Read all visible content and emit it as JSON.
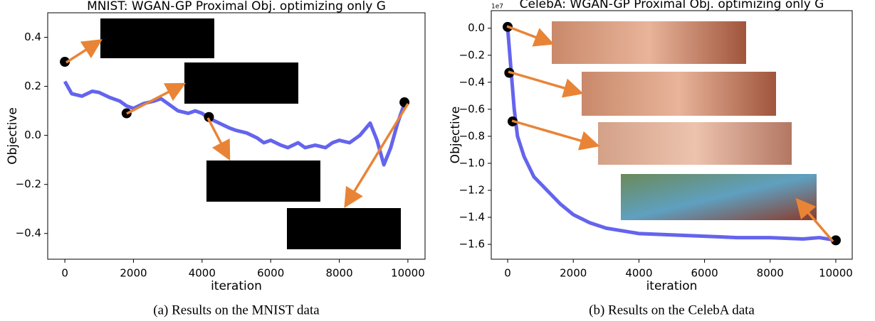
{
  "chart_data": [
    {
      "type": "line",
      "title": "MNIST: WGAN-GP Proximal Obj. optimizing only G",
      "x_label": "iteration",
      "y_label": "Objective",
      "caption": "(a) Results on the MNIST data",
      "color": "#6464ee",
      "x": [
        0,
        200,
        500,
        800,
        1000,
        1300,
        1600,
        1800,
        2000,
        2300,
        2600,
        2800,
        3000,
        3300,
        3600,
        3800,
        4000,
        4200,
        4500,
        4800,
        5000,
        5300,
        5600,
        5800,
        6000,
        6300,
        6500,
        6800,
        7000,
        7300,
        7600,
        7800,
        8000,
        8300,
        8600,
        8900,
        9100,
        9300,
        9500,
        9700,
        9900
      ],
      "values": [
        0.22,
        0.17,
        0.16,
        0.18,
        0.175,
        0.155,
        0.14,
        0.12,
        0.11,
        0.13,
        0.14,
        0.15,
        0.13,
        0.1,
        0.09,
        0.1,
        0.09,
        0.07,
        0.05,
        0.03,
        0.02,
        0.01,
        -0.01,
        -0.03,
        -0.02,
        -0.04,
        -0.05,
        -0.03,
        -0.05,
        -0.04,
        -0.05,
        -0.03,
        -0.02,
        -0.03,
        0.0,
        0.05,
        -0.02,
        -0.12,
        -0.05,
        0.05,
        0.13
      ],
      "points": {
        "x": [
          0,
          1800,
          4200,
          9900
        ],
        "values": [
          0.3,
          0.09,
          0.075,
          0.135
        ]
      },
      "xlim": [
        -500,
        10500
      ],
      "xticks": [
        0,
        2000,
        4000,
        6000,
        8000,
        10000
      ],
      "ylim": [
        -0.505,
        0.5
      ],
      "yticks": [
        {
          "value": 0.4,
          "label": "0.4"
        },
        {
          "value": 0.2,
          "label": "0.2"
        },
        {
          "value": 0,
          "label": "0.0"
        },
        {
          "value": -0.2,
          "label": "−0.2"
        },
        {
          "value": -0.4,
          "label": "−0.4"
        }
      ]
    },
    {
      "type": "line",
      "title": "CelebA: WGAN-GP Proximal Obj. optimizing only G",
      "x_label": "iteration",
      "y_label": "Objective",
      "offset_text": "1e7",
      "caption": "(b) Results on the CelebA data",
      "color": "#6464ee",
      "x": [
        0,
        100,
        200,
        300,
        500,
        800,
        1200,
        1600,
        2000,
        2500,
        3000,
        3500,
        4000,
        5000,
        6000,
        7000,
        8000,
        9000,
        9500,
        10000
      ],
      "values": [
        0.0,
        -0.3,
        -0.6,
        -0.8,
        -0.95,
        -1.1,
        -1.2,
        -1.3,
        -1.38,
        -1.44,
        -1.48,
        -1.5,
        -1.52,
        -1.53,
        -1.54,
        -1.55,
        -1.55,
        -1.56,
        -1.55,
        -1.57
      ],
      "points": {
        "x": [
          0,
          50,
          150,
          10000
        ],
        "values": [
          0.01,
          -0.33,
          -0.69,
          -1.57
        ]
      },
      "xlim": [
        -500,
        10500
      ],
      "xticks": [
        0,
        2000,
        4000,
        6000,
        8000,
        10000
      ],
      "ylim": [
        -1.71,
        0.13
      ],
      "yticks": [
        {
          "value": 0,
          "label": "0.0"
        },
        {
          "value": -0.2,
          "label": "−0.2"
        },
        {
          "value": -0.4,
          "label": "−0.4"
        },
        {
          "value": -0.6,
          "label": "−0.6"
        },
        {
          "value": -0.8,
          "label": "−0.8"
        },
        {
          "value": -1.0,
          "label": "−1.0"
        },
        {
          "value": -1.2,
          "label": "−1.2"
        },
        {
          "value": -1.4,
          "label": "−1.4"
        },
        {
          "value": -1.6,
          "label": "−1.6"
        }
      ]
    }
  ]
}
